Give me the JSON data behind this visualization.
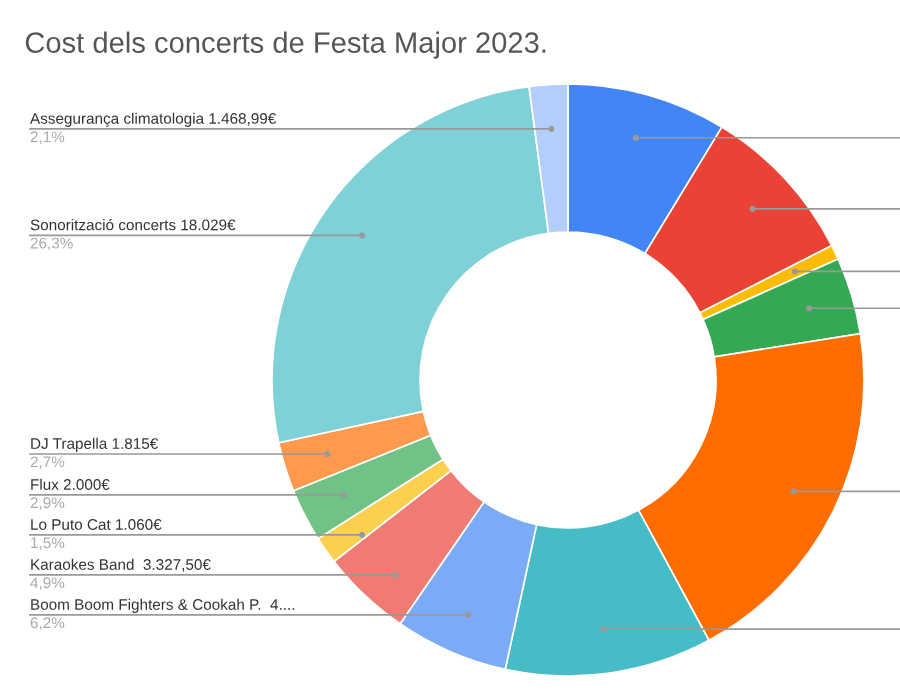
{
  "chart_data": {
    "type": "donut",
    "title": "Cost dels concerts de Festa Major 2023.",
    "legend": false,
    "categories": [
      null,
      null,
      null,
      null,
      null,
      null,
      "Boom Boom Fighters & Cookah P.  4....",
      "Karaokes Band  3.327,50€",
      "Lo Puto Cat 1.060€",
      "Flux 2.000€",
      "DJ Trapella 1.815€",
      "Sonorització concerts 18.029€",
      "Assegurança climatologia 1.468,99€"
    ],
    "values": [
      8.7,
      8.8,
      0.8,
      4.2,
      19.6,
      11.3,
      6.2,
      4.9,
      1.5,
      2.9,
      2.7,
      26.3,
      2.1
    ],
    "colors": [
      "#4285f4",
      "#ea4335",
      "#fbbc04",
      "#34a853",
      "#ff6d01",
      "#46bdc6",
      "#7baaf7",
      "#f07b72",
      "#fcd04f",
      "#71c287",
      "#ff994d",
      "#7ed1d7",
      "#b3cefb"
    ],
    "value_labels": [
      null,
      null,
      null,
      null,
      null,
      null,
      "6,2%",
      "4,9%",
      "1,5%",
      "2,9%",
      "2,7%",
      "26,3%",
      "2,1%"
    ]
  }
}
